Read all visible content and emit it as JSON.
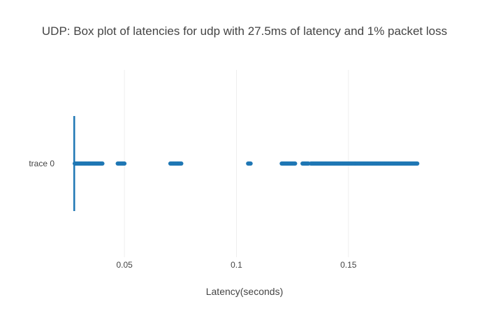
{
  "chart_data": {
    "type": "box",
    "orientation": "horizontal",
    "title": "UDP: Box plot of latencies for udp with 27.5ms of latency and 1% packet loss",
    "xlabel": "Latency(seconds)",
    "ylabel": "",
    "xlim": [
      0.025,
      0.1825
    ],
    "x_ticks": [
      0.05,
      0.1,
      0.15
    ],
    "x_tick_labels": [
      "0.05",
      "0.1",
      "0.15"
    ],
    "grid": true,
    "legend": "none",
    "series_color": "#1f77b4",
    "grid_color": "#eeeeee",
    "series": [
      {
        "category": "trace 0",
        "box": {
          "min": 0.0275,
          "q1": 0.0275,
          "median": 0.0275,
          "q3": 0.0276,
          "max": 0.0277
        },
        "outlier_ranges": [
          [
            0.0278,
            0.0405
          ],
          [
            0.047,
            0.0502
          ],
          [
            0.0705,
            0.0757
          ],
          [
            0.1052,
            0.1065
          ],
          [
            0.1202,
            0.1262
          ],
          [
            0.1295,
            0.1322
          ],
          [
            0.1332,
            0.181
          ]
        ]
      }
    ]
  }
}
